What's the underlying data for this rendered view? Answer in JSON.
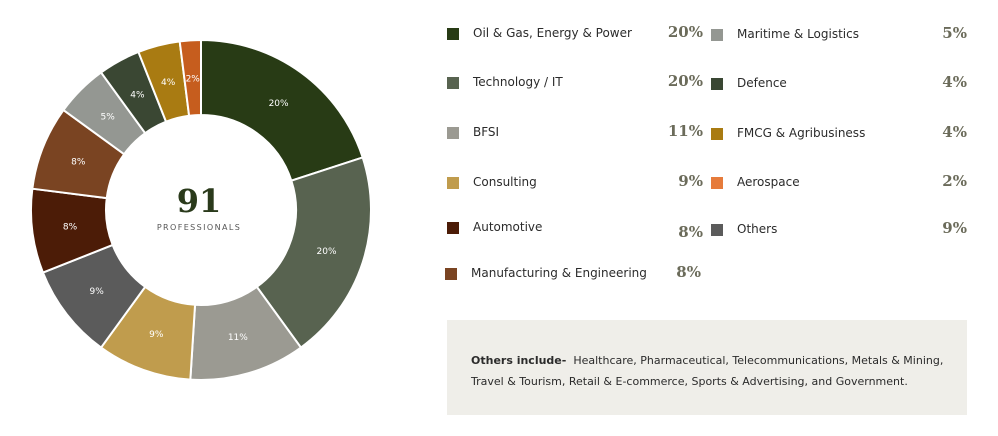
{
  "center": {
    "total": "91",
    "label": "PROFESSIONALS"
  },
  "chart_data": {
    "type": "pie",
    "slices": [
      {
        "label": "Oil & Gas, Energy & Power",
        "value": 20,
        "pct_label": "20%",
        "color": "#283b15"
      },
      {
        "label": "Technology / IT",
        "value": 20,
        "pct_label": "20%",
        "color": "#586350"
      },
      {
        "label": "BFSI",
        "value": 11,
        "pct_label": "11%",
        "color": "#9b9a92"
      },
      {
        "label": "Consulting",
        "value": 9,
        "pct_label": "9%",
        "color": "#c09c4d"
      },
      {
        "label": "Others",
        "value": 9,
        "pct_label": "9%",
        "color": "#5b5b5b"
      },
      {
        "label": "Automotive",
        "value": 8,
        "pct_label": "8%",
        "color": "#4c1c07"
      },
      {
        "label": "Manufacturing & Engineering",
        "value": 8,
        "pct_label": "8%",
        "color": "#7a4422"
      },
      {
        "label": "Maritime & Logistics",
        "value": 5,
        "pct_label": "5%",
        "color": "#949792"
      },
      {
        "label": "Defence",
        "value": 4,
        "pct_label": "4%",
        "color": "#3a4733"
      },
      {
        "label": "FMCG & Agribusiness",
        "value": 4,
        "pct_label": "4%",
        "color": "#a97b12"
      },
      {
        "label": "Aerospace",
        "value": 2,
        "pct_label": "2%",
        "color": "#c65d1e"
      }
    ]
  },
  "legend": [
    {
      "name": "Oil & Gas, Energy & Power",
      "value": "20%",
      "color": "#283b15"
    },
    {
      "name": "Technology / IT",
      "value": "20%",
      "color": "#586350"
    },
    {
      "name": "BFSI",
      "value": "11%",
      "color": "#9b9a92"
    },
    {
      "name": "Consulting",
      "value": "9%",
      "color": "#c09c4d"
    },
    {
      "name": "Automotive",
      "value": "8%",
      "color": "#4c1c07"
    },
    {
      "name": "Manufacturing & Engineering",
      "value": "8%",
      "color": "#7a4422"
    },
    {
      "name": "Maritime & Logistics",
      "value": "5%",
      "color": "#949792"
    },
    {
      "name": "Defence",
      "value": "4%",
      "color": "#3a4733"
    },
    {
      "name": "FMCG & Agribusiness",
      "value": "4%",
      "color": "#a97b12"
    },
    {
      "name": "Aerospace",
      "value": "2%",
      "color": "#e67b3b"
    },
    {
      "name": "Others",
      "value": "9%",
      "color": "#5b5b5b"
    }
  ],
  "note": {
    "label": "Others include-",
    "text": "Healthcare, Pharmaceutical, Telecommunications, Metals & Mining, Travel & Tourism, Retail & E-commerce, Sports & Advertising, and Government."
  }
}
